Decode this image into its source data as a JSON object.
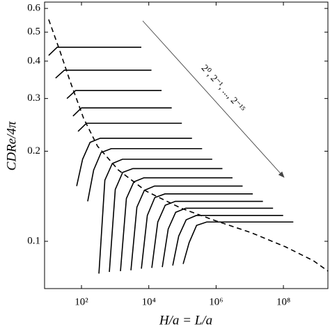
{
  "chart_data": {
    "type": "line",
    "xlabel": "H/a = L/a",
    "ylabel": "CDRe/4π",
    "annotation": "2⁰, 2⁻¹, ..., 2⁻¹⁵",
    "xscale": "log",
    "yscale": "log",
    "color": "#000000",
    "xlim": [
      8,
      2100000000
    ],
    "ylim": [
      0.0695,
      0.63
    ],
    "xticks": [
      {
        "value": 100,
        "label": "10²"
      },
      {
        "value": 10000,
        "label": "10⁴"
      },
      {
        "value": 1000000,
        "label": "10⁶"
      },
      {
        "value": 100000000,
        "label": "10⁸"
      }
    ],
    "yticks": [
      0.1,
      0.2,
      0.3,
      0.4,
      0.5,
      0.6
    ],
    "series": [
      {
        "x": [
          10.6,
          19,
          6000
        ],
        "values": [
          0.418,
          0.445,
          0.445
        ]
      },
      {
        "x": [
          17,
          31,
          12000
        ],
        "values": [
          0.351,
          0.373,
          0.373
        ]
      },
      {
        "x": [
          37,
          67,
          24000
        ],
        "values": [
          0.3,
          0.319,
          0.319
        ]
      },
      {
        "x": [
          56,
          100,
          48000
        ],
        "values": [
          0.262,
          0.279,
          0.279
        ]
      },
      {
        "x": [
          79,
          140,
          96000
        ],
        "values": [
          0.233,
          0.248,
          0.248
        ]
      },
      {
        "x": [
          72,
          108,
          180,
          360,
          192000
        ],
        "values": [
          0.153,
          0.188,
          0.214,
          0.221,
          0.221
        ]
      },
      {
        "x": [
          153,
          230,
          383,
          765,
          384000
        ],
        "values": [
          0.136,
          0.173,
          0.198,
          0.204,
          0.204
        ]
      },
      {
        "x": [
          330,
          495,
          825,
          1650,
          768000
        ],
        "values": [
          0.078,
          0.16,
          0.182,
          0.188,
          0.188
        ]
      },
      {
        "x": [
          673,
          1010,
          1680,
          3370,
          1540000
        ],
        "values": [
          0.079,
          0.149,
          0.17,
          0.175,
          0.175
        ]
      },
      {
        "x": [
          1440,
          2160,
          3600,
          7200,
          3070000
        ],
        "values": [
          0.0795,
          0.139,
          0.158,
          0.163,
          0.163
        ]
      },
      {
        "x": [
          2950,
          4430,
          7380,
          14800,
          6140000
        ],
        "values": [
          0.08,
          0.13,
          0.148,
          0.153,
          0.153
        ]
      },
      {
        "x": [
          6030,
          9050,
          15100,
          30200,
          12300000
        ],
        "values": [
          0.081,
          0.122,
          0.14,
          0.144,
          0.144
        ]
      },
      {
        "x": [
          12300,
          18500,
          30800,
          61500,
          24600000
        ],
        "values": [
          0.0815,
          0.116,
          0.132,
          0.136,
          0.136
        ]
      },
      {
        "x": [
          25200,
          37800,
          63000,
          126000,
          49200000
        ],
        "values": [
          0.082,
          0.11,
          0.125,
          0.129,
          0.129
        ]
      },
      {
        "x": [
          51500,
          77300,
          129000,
          258000,
          98300000
        ],
        "values": [
          0.083,
          0.104,
          0.118,
          0.122,
          0.122
        ]
      },
      {
        "x": [
          105000,
          158000,
          263000,
          525000,
          197000000
        ],
        "values": [
          0.084,
          0.099,
          0.113,
          0.116,
          0.116
        ]
      },
      {
        "dashed": true,
        "x": [
          10.6,
          21.7,
          44.5,
          115,
          299,
          1250,
          8410,
          91400,
          991000,
          10700000,
          116000000,
          783000000,
          2140000000
        ],
        "values": [
          0.551,
          0.44,
          0.346,
          0.258,
          0.208,
          0.173,
          0.147,
          0.129,
          0.117,
          0.107,
          0.0958,
          0.0861,
          0.0794
        ]
      }
    ]
  }
}
